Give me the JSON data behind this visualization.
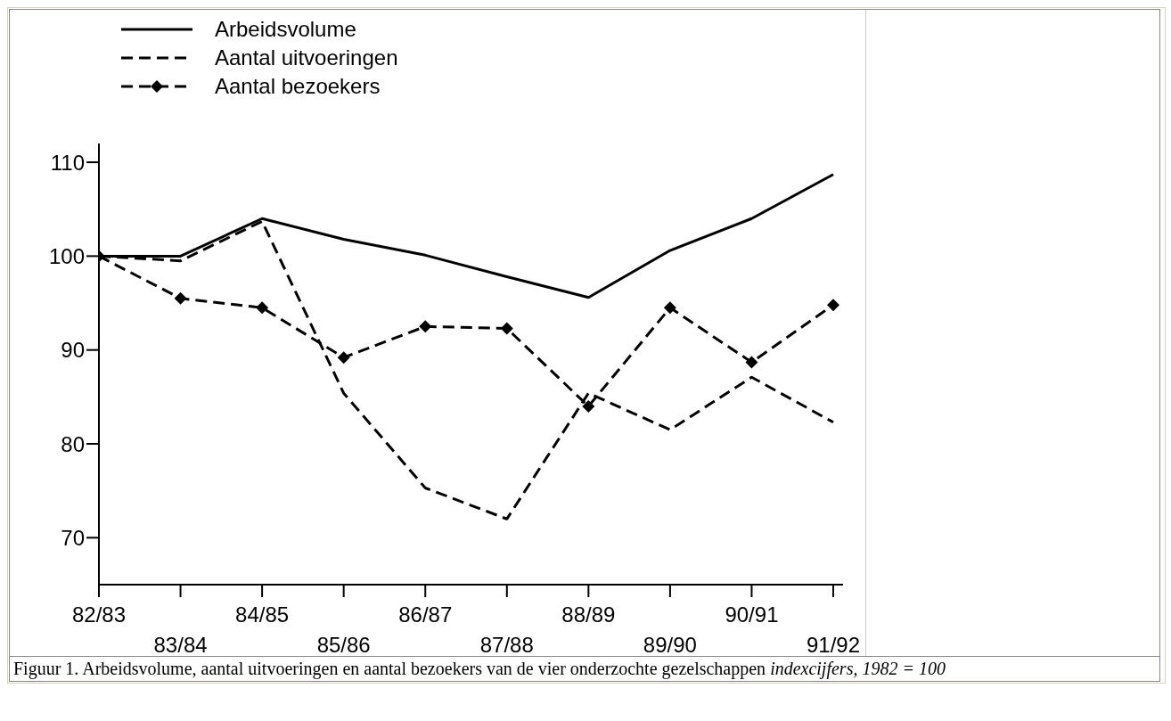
{
  "chart_data": {
    "type": "line",
    "title": "Figuur 1. Arbeidsvolume, aantal uitvoeringen en aantal bezoekers van de vier onderzochte gezelschappen",
    "subtitle": "indexcijfers, 1982 = 100",
    "categories": [
      "82/83",
      "83/84",
      "84/85",
      "85/86",
      "86/87",
      "87/88",
      "88/89",
      "89/90",
      "90/91",
      "91/92"
    ],
    "series": [
      {
        "name": "Arbeidsvolume",
        "color": "#000000",
        "line_style": "solid",
        "marker": "none",
        "values": [
          100,
          100,
          104.0,
          101.8,
          100.1,
          97.8,
          95.6,
          100.6,
          104.0,
          108.7
        ]
      },
      {
        "name": "Aantal uitvoeringen",
        "color": "#000000",
        "line_style": "dashed",
        "marker": "none",
        "values": [
          100,
          99.5,
          103.7,
          85.4,
          75.3,
          72.0,
          85.4,
          81.5,
          87.1,
          82.3
        ]
      },
      {
        "name": "Aantal bezoekers",
        "color": "#000000",
        "line_style": "dashed",
        "marker": "diamond",
        "values": [
          100,
          95.5,
          94.5,
          89.2,
          92.5,
          92.3,
          84.0,
          94.5,
          88.7,
          94.8
        ]
      }
    ],
    "ylim": [
      65,
      112
    ],
    "yticks": [
      70,
      80,
      90,
      100,
      110
    ],
    "legend": "top left"
  }
}
